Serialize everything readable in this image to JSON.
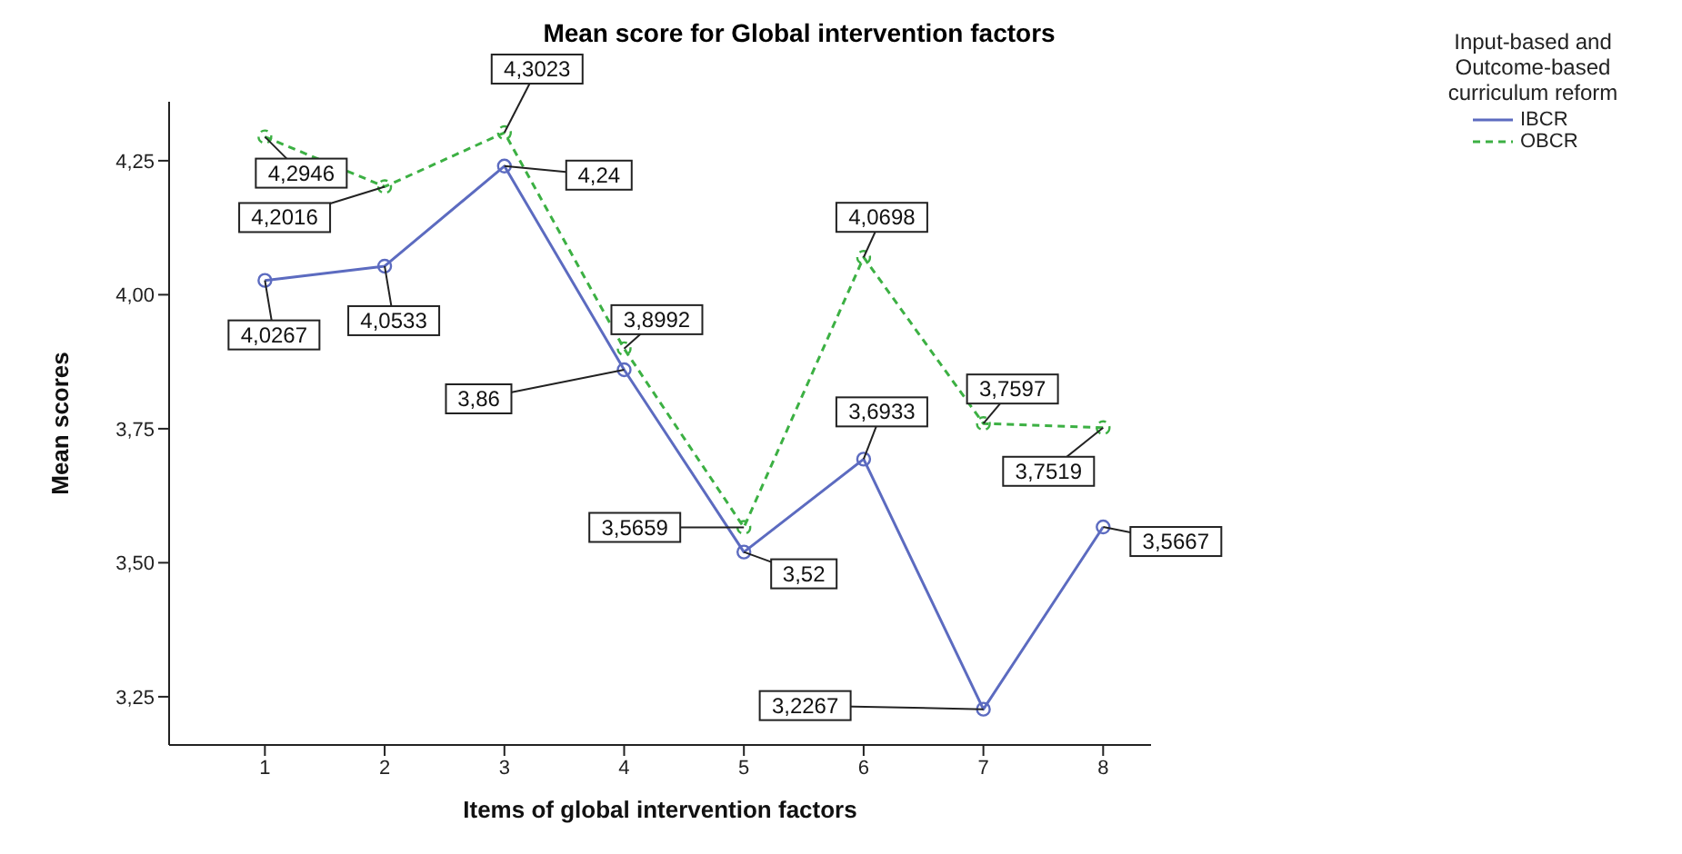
{
  "chart_data": {
    "type": "line",
    "title": "Mean score for Global intervention factors",
    "xlabel": "Items of global intervention factors",
    "ylabel": "Mean scores",
    "legend_title": "Input-based and Outcome-based curriculum reform",
    "x": [
      1,
      2,
      3,
      4,
      5,
      6,
      7,
      8
    ],
    "xlim": [
      0.2,
      8.4
    ],
    "xticks": [
      1,
      2,
      3,
      4,
      5,
      6,
      7,
      8
    ],
    "ylim": [
      3.16,
      4.36
    ],
    "yticks": [
      {
        "value": 3.25,
        "label": "3,25"
      },
      {
        "value": 3.5,
        "label": "3,50"
      },
      {
        "value": 3.75,
        "label": "3,75"
      },
      {
        "value": 4,
        "label": "4,00"
      },
      {
        "value": 4.25,
        "label": "4,25"
      }
    ],
    "series": [
      {
        "name": "IBCR",
        "color": "#5c6bc0",
        "line_style": "solid",
        "values": [
          4.0267,
          4.0533,
          4.24,
          3.86,
          3.52,
          3.6933,
          3.2267,
          3.5667
        ],
        "value_labels": [
          "4,0267",
          "4,0533",
          "4,24",
          "3,86",
          "3,52",
          "3,6933",
          "3,2267",
          "3,5667"
        ]
      },
      {
        "name": "OBCR",
        "color": "#3cb043",
        "line_style": "dashed",
        "values": [
          4.2946,
          4.2016,
          4.3023,
          3.8992,
          3.5659,
          4.0698,
          3.7597,
          3.7519
        ],
        "value_labels": [
          "4,2946",
          "4,2016",
          "4,3023",
          "3,8992",
          "3,5659",
          "4,0698",
          "3,7597",
          "3,7519"
        ]
      }
    ],
    "marker": "circle",
    "grid": false,
    "legend": "top right"
  }
}
